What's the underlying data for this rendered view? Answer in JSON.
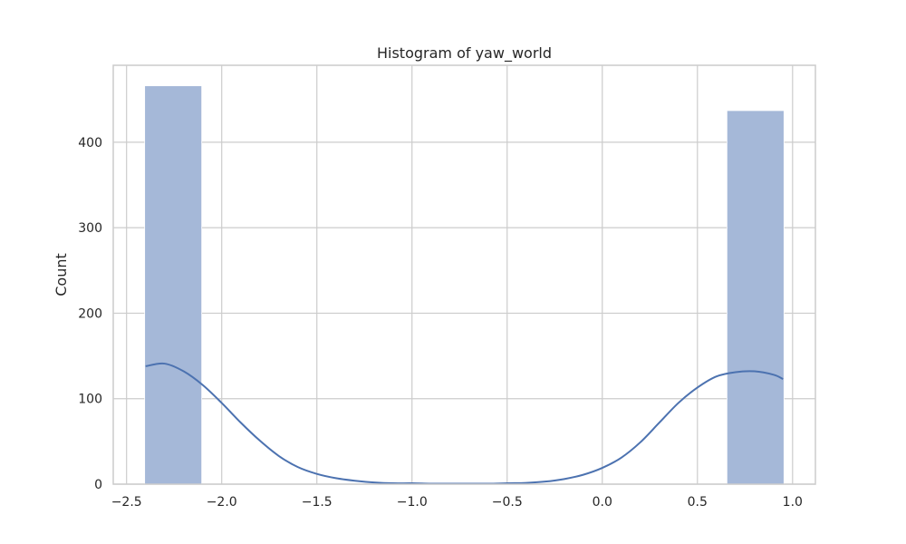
{
  "chart_data": {
    "type": "bar",
    "title": "Histogram of yaw_world",
    "xlabel": "",
    "ylabel": "Count",
    "xlim": [
      -2.57,
      1.12
    ],
    "ylim": [
      0,
      490
    ],
    "x_ticks": [
      -2.5,
      -2.0,
      -1.5,
      -1.0,
      -0.5,
      0.0,
      0.5,
      1.0
    ],
    "x_tick_labels": [
      "−2.5",
      "−2.0",
      "−1.5",
      "−1.0",
      "−0.5",
      "0.0",
      "0.5",
      "1.0"
    ],
    "y_ticks": [
      0,
      100,
      200,
      300,
      400
    ],
    "y_tick_labels": [
      "0",
      "100",
      "200",
      "300",
      "400"
    ],
    "grid": true,
    "bar_color": "#a5b8d8",
    "kde_color": "#4c72b0",
    "bins": [
      {
        "x0": -2.405,
        "x1": -2.105,
        "count": 466
      },
      {
        "x0": 0.655,
        "x1": 0.955,
        "count": 437
      }
    ],
    "kde": {
      "x": [
        -2.4,
        -2.3,
        -2.2,
        -2.1,
        -2.0,
        -1.9,
        -1.8,
        -1.7,
        -1.6,
        -1.5,
        -1.4,
        -1.3,
        -1.2,
        -1.1,
        -1.0,
        -0.9,
        -0.8,
        -0.7,
        -0.6,
        -0.5,
        -0.4,
        -0.3,
        -0.2,
        -0.1,
        0.0,
        0.1,
        0.2,
        0.3,
        0.4,
        0.5,
        0.6,
        0.7,
        0.8,
        0.9,
        0.95
      ],
      "y": [
        138,
        141,
        132,
        116,
        95,
        72,
        51,
        33,
        20,
        12,
        7,
        4,
        2,
        1,
        1,
        0.5,
        0.5,
        0.5,
        0.5,
        1,
        1.5,
        3,
        6,
        11,
        19,
        31,
        49,
        72,
        95,
        113,
        126,
        131,
        132,
        128,
        123
      ]
    }
  }
}
